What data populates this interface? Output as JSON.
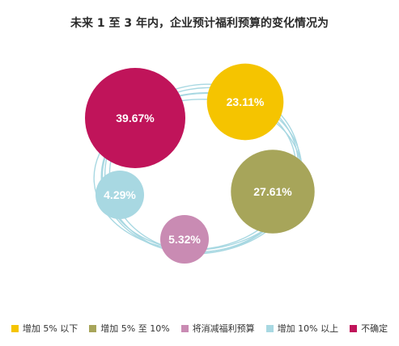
{
  "title": "未来 1 至 3 年内，企业预计福利预算的变化情况为",
  "chart_data": {
    "type": "bubble",
    "title": "未来 1 至 3 年内，企业预计福利预算的变化情况为",
    "series": [
      {
        "name": "不确定",
        "value": 39.67,
        "label": "39.67%",
        "color": "#c0145a"
      },
      {
        "name": "增加 5% 以下",
        "value": 23.11,
        "label": "23.11%",
        "color": "#f5c400"
      },
      {
        "name": "增加 5% 至 10%",
        "value": 27.61,
        "label": "27.61%",
        "color": "#a7a55a"
      },
      {
        "name": "将消减福利预算",
        "value": 5.32,
        "label": "5.32%",
        "color": "#c98bb3"
      },
      {
        "name": "增加 10% 以上",
        "value": 4.29,
        "label": "4.29%",
        "color": "#a8d8e2"
      }
    ],
    "legend": [
      {
        "label": "增加 5% 以下",
        "color": "#f5c400"
      },
      {
        "label": "增加 5% 至 10%",
        "color": "#a7a55a"
      },
      {
        "label": "将消减福利预算",
        "color": "#c98bb3"
      },
      {
        "label": "增加 10% 以上",
        "color": "#a8d8e2"
      },
      {
        "label": "不确定",
        "color": "#c0145a"
      }
    ],
    "legend_position": "bottom"
  }
}
